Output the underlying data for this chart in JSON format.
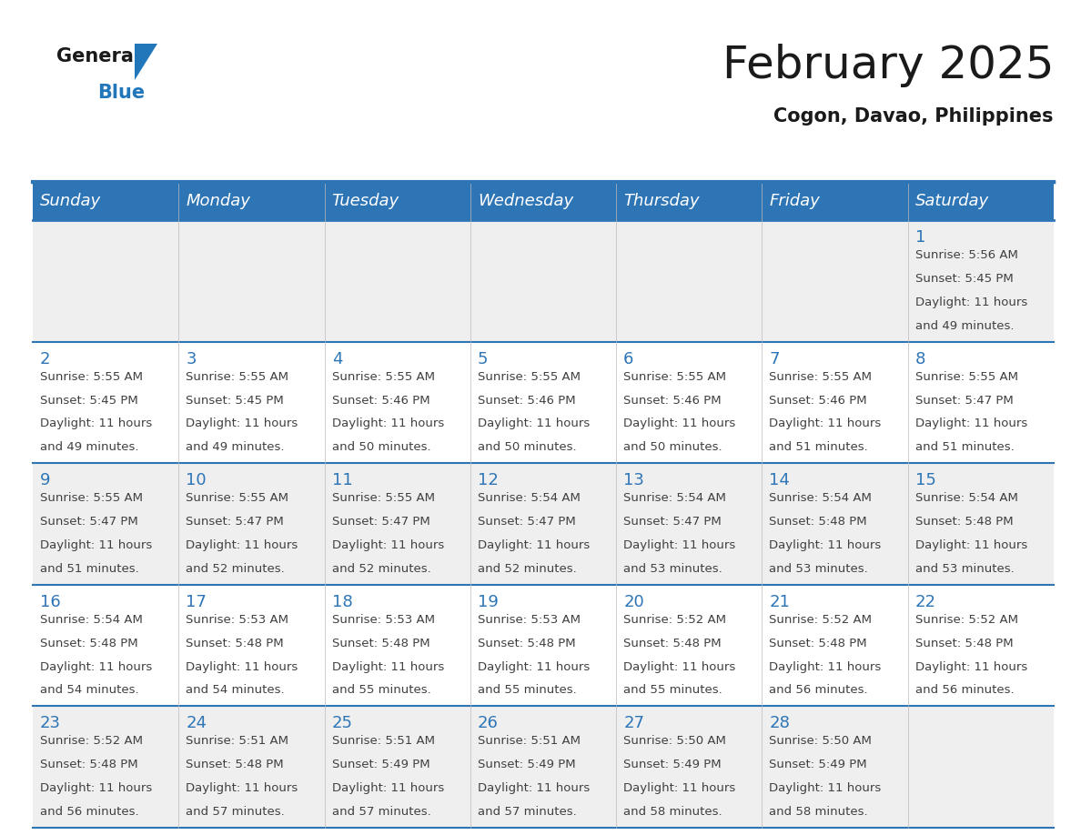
{
  "title": "February 2025",
  "subtitle": "Cogon, Davao, Philippines",
  "header_bg_color": "#2E75B6",
  "header_text_color": "#FFFFFF",
  "weekdays": [
    "Sunday",
    "Monday",
    "Tuesday",
    "Wednesday",
    "Thursday",
    "Friday",
    "Saturday"
  ],
  "bg_color": "#FFFFFF",
  "row_bg_alt": "#EFEFEF",
  "grid_line_color": "#2E75B6",
  "day_number_color": "#2E75B6",
  "cell_text_color": "#404040",
  "logo_text_color": "#1a1a1a",
  "logo_blue_color": "#2277BB",
  "title_color": "#1a1a1a",
  "subtitle_color": "#1a1a1a",
  "title_fontsize": 36,
  "subtitle_fontsize": 15,
  "header_fontsize": 13,
  "day_num_fontsize": 13,
  "cell_text_fontsize": 9.5,
  "days": [
    {
      "day": 1,
      "col": 6,
      "row": 0,
      "sunrise": "5:56 AM",
      "sunset": "5:45 PM",
      "daylight": "11 hours and 49 minutes."
    },
    {
      "day": 2,
      "col": 0,
      "row": 1,
      "sunrise": "5:55 AM",
      "sunset": "5:45 PM",
      "daylight": "11 hours and 49 minutes."
    },
    {
      "day": 3,
      "col": 1,
      "row": 1,
      "sunrise": "5:55 AM",
      "sunset": "5:45 PM",
      "daylight": "11 hours and 49 minutes."
    },
    {
      "day": 4,
      "col": 2,
      "row": 1,
      "sunrise": "5:55 AM",
      "sunset": "5:46 PM",
      "daylight": "11 hours and 50 minutes."
    },
    {
      "day": 5,
      "col": 3,
      "row": 1,
      "sunrise": "5:55 AM",
      "sunset": "5:46 PM",
      "daylight": "11 hours and 50 minutes."
    },
    {
      "day": 6,
      "col": 4,
      "row": 1,
      "sunrise": "5:55 AM",
      "sunset": "5:46 PM",
      "daylight": "11 hours and 50 minutes."
    },
    {
      "day": 7,
      "col": 5,
      "row": 1,
      "sunrise": "5:55 AM",
      "sunset": "5:46 PM",
      "daylight": "11 hours and 51 minutes."
    },
    {
      "day": 8,
      "col": 6,
      "row": 1,
      "sunrise": "5:55 AM",
      "sunset": "5:47 PM",
      "daylight": "11 hours and 51 minutes."
    },
    {
      "day": 9,
      "col": 0,
      "row": 2,
      "sunrise": "5:55 AM",
      "sunset": "5:47 PM",
      "daylight": "11 hours and 51 minutes."
    },
    {
      "day": 10,
      "col": 1,
      "row": 2,
      "sunrise": "5:55 AM",
      "sunset": "5:47 PM",
      "daylight": "11 hours and 52 minutes."
    },
    {
      "day": 11,
      "col": 2,
      "row": 2,
      "sunrise": "5:55 AM",
      "sunset": "5:47 PM",
      "daylight": "11 hours and 52 minutes."
    },
    {
      "day": 12,
      "col": 3,
      "row": 2,
      "sunrise": "5:54 AM",
      "sunset": "5:47 PM",
      "daylight": "11 hours and 52 minutes."
    },
    {
      "day": 13,
      "col": 4,
      "row": 2,
      "sunrise": "5:54 AM",
      "sunset": "5:47 PM",
      "daylight": "11 hours and 53 minutes."
    },
    {
      "day": 14,
      "col": 5,
      "row": 2,
      "sunrise": "5:54 AM",
      "sunset": "5:48 PM",
      "daylight": "11 hours and 53 minutes."
    },
    {
      "day": 15,
      "col": 6,
      "row": 2,
      "sunrise": "5:54 AM",
      "sunset": "5:48 PM",
      "daylight": "11 hours and 53 minutes."
    },
    {
      "day": 16,
      "col": 0,
      "row": 3,
      "sunrise": "5:54 AM",
      "sunset": "5:48 PM",
      "daylight": "11 hours and 54 minutes."
    },
    {
      "day": 17,
      "col": 1,
      "row": 3,
      "sunrise": "5:53 AM",
      "sunset": "5:48 PM",
      "daylight": "11 hours and 54 minutes."
    },
    {
      "day": 18,
      "col": 2,
      "row": 3,
      "sunrise": "5:53 AM",
      "sunset": "5:48 PM",
      "daylight": "11 hours and 55 minutes."
    },
    {
      "day": 19,
      "col": 3,
      "row": 3,
      "sunrise": "5:53 AM",
      "sunset": "5:48 PM",
      "daylight": "11 hours and 55 minutes."
    },
    {
      "day": 20,
      "col": 4,
      "row": 3,
      "sunrise": "5:52 AM",
      "sunset": "5:48 PM",
      "daylight": "11 hours and 55 minutes."
    },
    {
      "day": 21,
      "col": 5,
      "row": 3,
      "sunrise": "5:52 AM",
      "sunset": "5:48 PM",
      "daylight": "11 hours and 56 minutes."
    },
    {
      "day": 22,
      "col": 6,
      "row": 3,
      "sunrise": "5:52 AM",
      "sunset": "5:48 PM",
      "daylight": "11 hours and 56 minutes."
    },
    {
      "day": 23,
      "col": 0,
      "row": 4,
      "sunrise": "5:52 AM",
      "sunset": "5:48 PM",
      "daylight": "11 hours and 56 minutes."
    },
    {
      "day": 24,
      "col": 1,
      "row": 4,
      "sunrise": "5:51 AM",
      "sunset": "5:48 PM",
      "daylight": "11 hours and 57 minutes."
    },
    {
      "day": 25,
      "col": 2,
      "row": 4,
      "sunrise": "5:51 AM",
      "sunset": "5:49 PM",
      "daylight": "11 hours and 57 minutes."
    },
    {
      "day": 26,
      "col": 3,
      "row": 4,
      "sunrise": "5:51 AM",
      "sunset": "5:49 PM",
      "daylight": "11 hours and 57 minutes."
    },
    {
      "day": 27,
      "col": 4,
      "row": 4,
      "sunrise": "5:50 AM",
      "sunset": "5:49 PM",
      "daylight": "11 hours and 58 minutes."
    },
    {
      "day": 28,
      "col": 5,
      "row": 4,
      "sunrise": "5:50 AM",
      "sunset": "5:49 PM",
      "daylight": "11 hours and 58 minutes."
    }
  ],
  "num_rows": 5,
  "num_cols": 7
}
